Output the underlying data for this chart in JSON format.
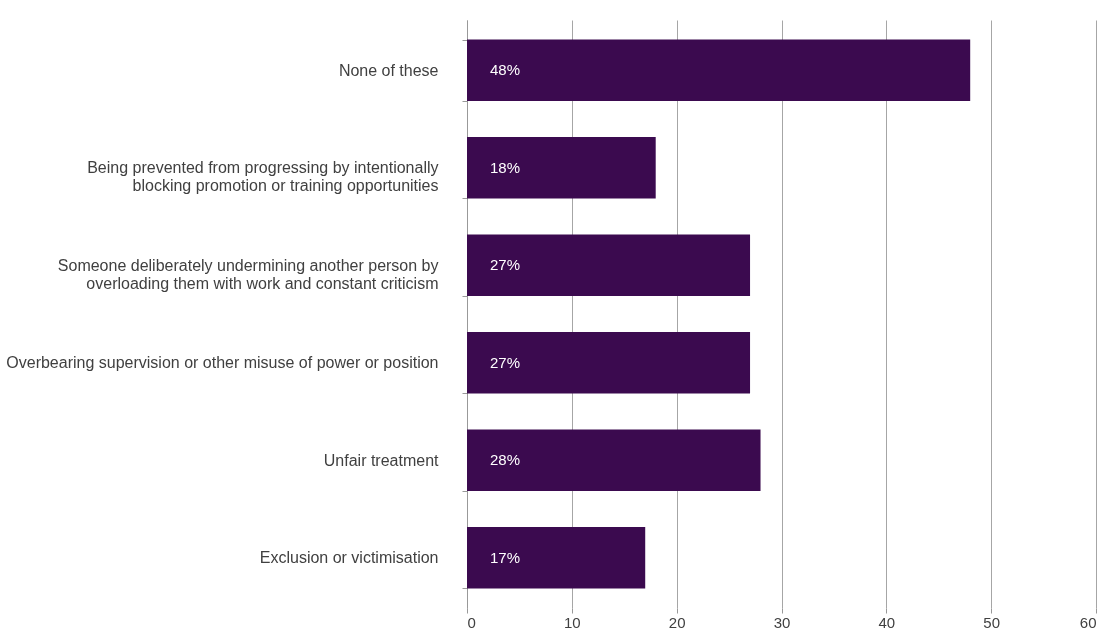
{
  "chart_data": {
    "type": "bar",
    "orientation": "horizontal",
    "categories": [
      "None of these",
      "Being prevented from progressing by intentionally\nblocking promotion or training opportunities",
      "Someone deliberately undermining another person by\noverloading them with work and constant criticism",
      "Overbearing supervision or other misuse of power or position",
      "Unfair treatment",
      "Exclusion or victimisation"
    ],
    "values": [
      48,
      18,
      27,
      27,
      28,
      17
    ],
    "value_labels": [
      "48%",
      "18%",
      "27%",
      "27%",
      "28%",
      "17%"
    ],
    "color": "#3b0a4f",
    "xlim": [
      0,
      60
    ],
    "xticks": [
      0,
      10,
      20,
      30,
      40,
      50,
      60
    ],
    "grid": "x"
  }
}
